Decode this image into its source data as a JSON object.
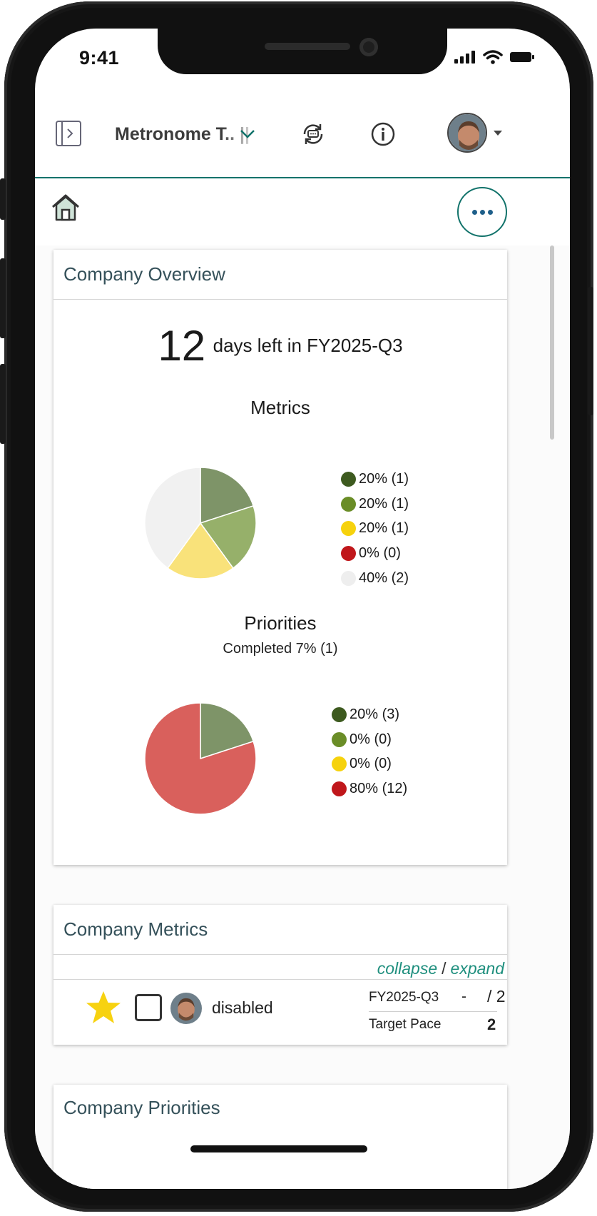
{
  "status": {
    "time": "9:41"
  },
  "appbar": {
    "title": "Metronome T.. ||"
  },
  "overview": {
    "header": "Company Overview",
    "days_left": "12",
    "days_text": "days left in FY2025-Q3",
    "metrics": {
      "title": "Metrics",
      "chart_data": {
        "type": "pie",
        "title": "Metrics",
        "values": [
          20,
          20,
          20,
          0,
          40
        ],
        "colors": [
          "#7e9468",
          "#96b06a",
          "#f9e27a",
          "#d9605c",
          "#f1f1f1"
        ],
        "legend": [
          {
            "label": "20% (1)",
            "color": "#3d5a1f"
          },
          {
            "label": "20% (1)",
            "color": "#6a8d27"
          },
          {
            "label": "20% (1)",
            "color": "#f6d20d"
          },
          {
            "label": "0% (0)",
            "color": "#c0171b"
          },
          {
            "label": "40% (2)",
            "color": "#eeeeee"
          }
        ]
      }
    },
    "priorities": {
      "title": "Priorities",
      "subtitle": "Completed 7% (1)",
      "chart_data": {
        "type": "pie",
        "title": "Priorities",
        "values": [
          20,
          0,
          0,
          80
        ],
        "colors": [
          "#7e9468",
          "#96b06a",
          "#f9e27a",
          "#d9605c"
        ],
        "legend": [
          {
            "label": "20% (3)",
            "color": "#3d5a1f"
          },
          {
            "label": "0% (0)",
            "color": "#6a8d27"
          },
          {
            "label": "0% (0)",
            "color": "#f6d20d"
          },
          {
            "label": "80% (12)",
            "color": "#c0171b"
          }
        ]
      }
    }
  },
  "company_metrics": {
    "header": "Company Metrics",
    "collapse": "collapse",
    "separator": "/",
    "expand": "expand",
    "row": {
      "name": "disabled",
      "quarter": "FY2025-Q3",
      "current": "-",
      "target": "/ 2",
      "pace_label": "Target Pace",
      "pace_value": "2"
    }
  },
  "company_priorities": {
    "header": "Company Priorities"
  }
}
